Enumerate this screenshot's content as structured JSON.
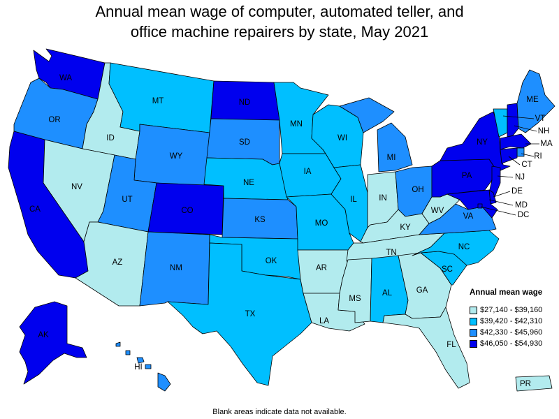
{
  "title_lines": [
    "Annual mean wage of computer, automated teller, and",
    "office machine repairers by state, May 2021"
  ],
  "legend": {
    "title": "Annual mean wage",
    "items": [
      {
        "label": "$27,140 - $39,160",
        "color": "#b2ebee"
      },
      {
        "label": "$39,420 - $42,310",
        "color": "#00bfff"
      },
      {
        "label": "$42,330 - $45,960",
        "color": "#1e8fff"
      },
      {
        "label": "$46,050 - $54,930",
        "color": "#0000ee"
      }
    ]
  },
  "footnote": "Blank areas indicate data not available.",
  "states": [
    {
      "abbr": "WA",
      "tier": 3
    },
    {
      "abbr": "OR",
      "tier": 2
    },
    {
      "abbr": "CA",
      "tier": 3
    },
    {
      "abbr": "ID",
      "tier": 0
    },
    {
      "abbr": "NV",
      "tier": 0
    },
    {
      "abbr": "MT",
      "tier": 1
    },
    {
      "abbr": "WY",
      "tier": 2
    },
    {
      "abbr": "UT",
      "tier": 2
    },
    {
      "abbr": "AZ",
      "tier": 0
    },
    {
      "abbr": "CO",
      "tier": 3
    },
    {
      "abbr": "NM",
      "tier": 2
    },
    {
      "abbr": "ND",
      "tier": 3
    },
    {
      "abbr": "SD",
      "tier": 2
    },
    {
      "abbr": "NE",
      "tier": 1
    },
    {
      "abbr": "KS",
      "tier": 2
    },
    {
      "abbr": "OK",
      "tier": 1
    },
    {
      "abbr": "TX",
      "tier": 1
    },
    {
      "abbr": "MN",
      "tier": 1
    },
    {
      "abbr": "IA",
      "tier": 1
    },
    {
      "abbr": "MO",
      "tier": 1
    },
    {
      "abbr": "AR",
      "tier": 0
    },
    {
      "abbr": "LA",
      "tier": 0
    },
    {
      "abbr": "WI",
      "tier": 1
    },
    {
      "abbr": "IL",
      "tier": 1
    },
    {
      "abbr": "MI",
      "tier": 2
    },
    {
      "abbr": "IN",
      "tier": 0
    },
    {
      "abbr": "OH",
      "tier": 2
    },
    {
      "abbr": "KY",
      "tier": 0
    },
    {
      "abbr": "TN",
      "tier": 0
    },
    {
      "abbr": "MS",
      "tier": 0
    },
    {
      "abbr": "AL",
      "tier": 1
    },
    {
      "abbr": "GA",
      "tier": 0
    },
    {
      "abbr": "FL",
      "tier": 0
    },
    {
      "abbr": "SC",
      "tier": 1
    },
    {
      "abbr": "NC",
      "tier": 1
    },
    {
      "abbr": "VA",
      "tier": 2
    },
    {
      "abbr": "WV",
      "tier": 0
    },
    {
      "abbr": "PA",
      "tier": 3
    },
    {
      "abbr": "NY",
      "tier": 3
    },
    {
      "abbr": "VT",
      "tier": 1
    },
    {
      "abbr": "NH",
      "tier": 3
    },
    {
      "abbr": "ME",
      "tier": 2
    },
    {
      "abbr": "MA",
      "tier": 3
    },
    {
      "abbr": "RI",
      "tier": 2
    },
    {
      "abbr": "CT",
      "tier": 3
    },
    {
      "abbr": "NJ",
      "tier": 3
    },
    {
      "abbr": "DE",
      "tier": 3
    },
    {
      "abbr": "MD",
      "tier": 3
    },
    {
      "abbr": "DC",
      "tier": 3
    },
    {
      "abbr": "AK",
      "tier": 3
    },
    {
      "abbr": "HI",
      "tier": 2
    },
    {
      "abbr": "PR",
      "tier": 0
    }
  ]
}
